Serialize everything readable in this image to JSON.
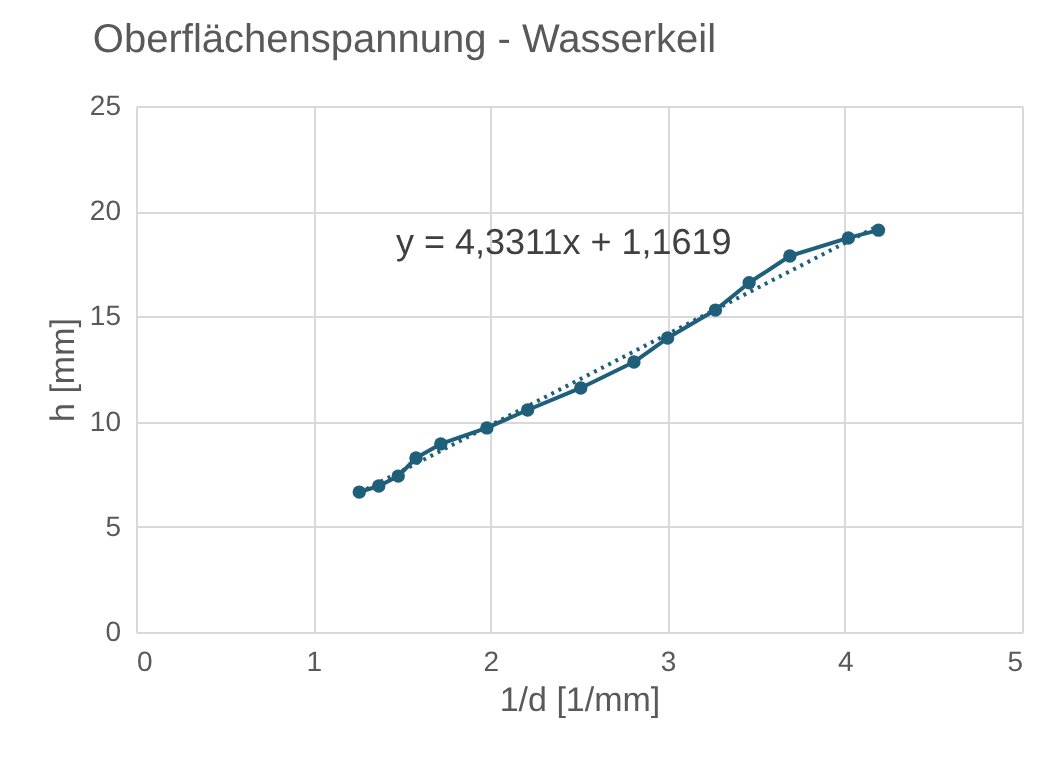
{
  "chart_data": {
    "type": "line",
    "title": "Oberflächenspannung - Wasserkeil",
    "xlabel": "1/d [1/mm]",
    "ylabel": "h [mm]",
    "xlim": [
      0,
      5
    ],
    "xticks": [
      0,
      1,
      2,
      3,
      4,
      5
    ],
    "ylim": [
      0,
      25
    ],
    "yticks": [
      0,
      5,
      10,
      15,
      20,
      25
    ],
    "grid": true,
    "annotations": [
      "y = 4,3311x + 1,1619"
    ],
    "series": [
      {
        "color": "#1f5f7a",
        "marker": "circle",
        "line_style": "solid",
        "x": [
          1.26,
          1.37,
          1.48,
          1.58,
          1.72,
          1.98,
          2.21,
          2.51,
          2.81,
          3.0,
          3.27,
          3.46,
          3.69,
          4.02,
          4.19
        ],
        "values": [
          6.65,
          6.94,
          7.41,
          8.27,
          8.94,
          9.7,
          10.55,
          11.6,
          12.83,
          13.97,
          15.3,
          16.6,
          17.87,
          18.73,
          19.1
        ]
      },
      {
        "color": "#1f5f7a",
        "marker": "none",
        "line_style": "dotted",
        "x": [
          1.26,
          4.19
        ],
        "values": [
          6.62,
          19.31
        ]
      }
    ]
  }
}
